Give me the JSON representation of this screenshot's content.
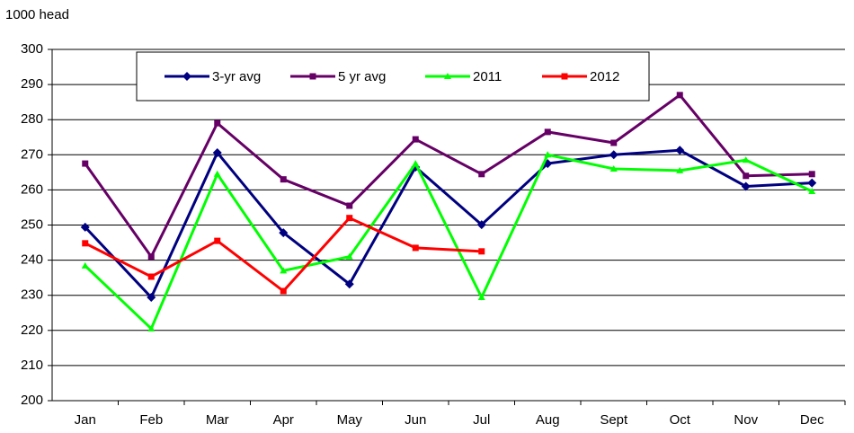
{
  "chart_data": {
    "type": "line",
    "y_label": "1000 head",
    "categories": [
      "Jan",
      "Feb",
      "Mar",
      "Apr",
      "May",
      "Jun",
      "Jul",
      "Aug",
      "Sept",
      "Oct",
      "Nov",
      "Dec"
    ],
    "series": [
      {
        "name": "3-yr avg",
        "color": "#000080",
        "marker": "diamond",
        "values": [
          249.4,
          229.4,
          270.6,
          247.8,
          233.2,
          266.5,
          250.1,
          267.5,
          270,
          271.3,
          261,
          262
        ]
      },
      {
        "name": "5 yr avg",
        "color": "#660066",
        "marker": "square",
        "values": [
          267.5,
          241,
          279,
          263,
          255.5,
          274.4,
          264.5,
          276.5,
          273.4,
          287,
          264,
          264.5
        ]
      },
      {
        "name": "2011",
        "color": "#00ff00",
        "marker": "triangle",
        "values": [
          238.4,
          220.5,
          264.5,
          237,
          241,
          267.5,
          229.4,
          270,
          266,
          265.5,
          268.5,
          259.6
        ]
      },
      {
        "name": "2012",
        "color": "#ff0000",
        "marker": "square",
        "values": [
          244.8,
          235.3,
          245.5,
          231.2,
          252,
          243.5,
          242.5,
          null,
          null,
          null,
          null,
          null
        ]
      }
    ],
    "ylim": [
      200,
      300
    ],
    "yticks": [
      200,
      210,
      220,
      230,
      240,
      250,
      260,
      270,
      280,
      290,
      300
    ],
    "grid": true
  }
}
